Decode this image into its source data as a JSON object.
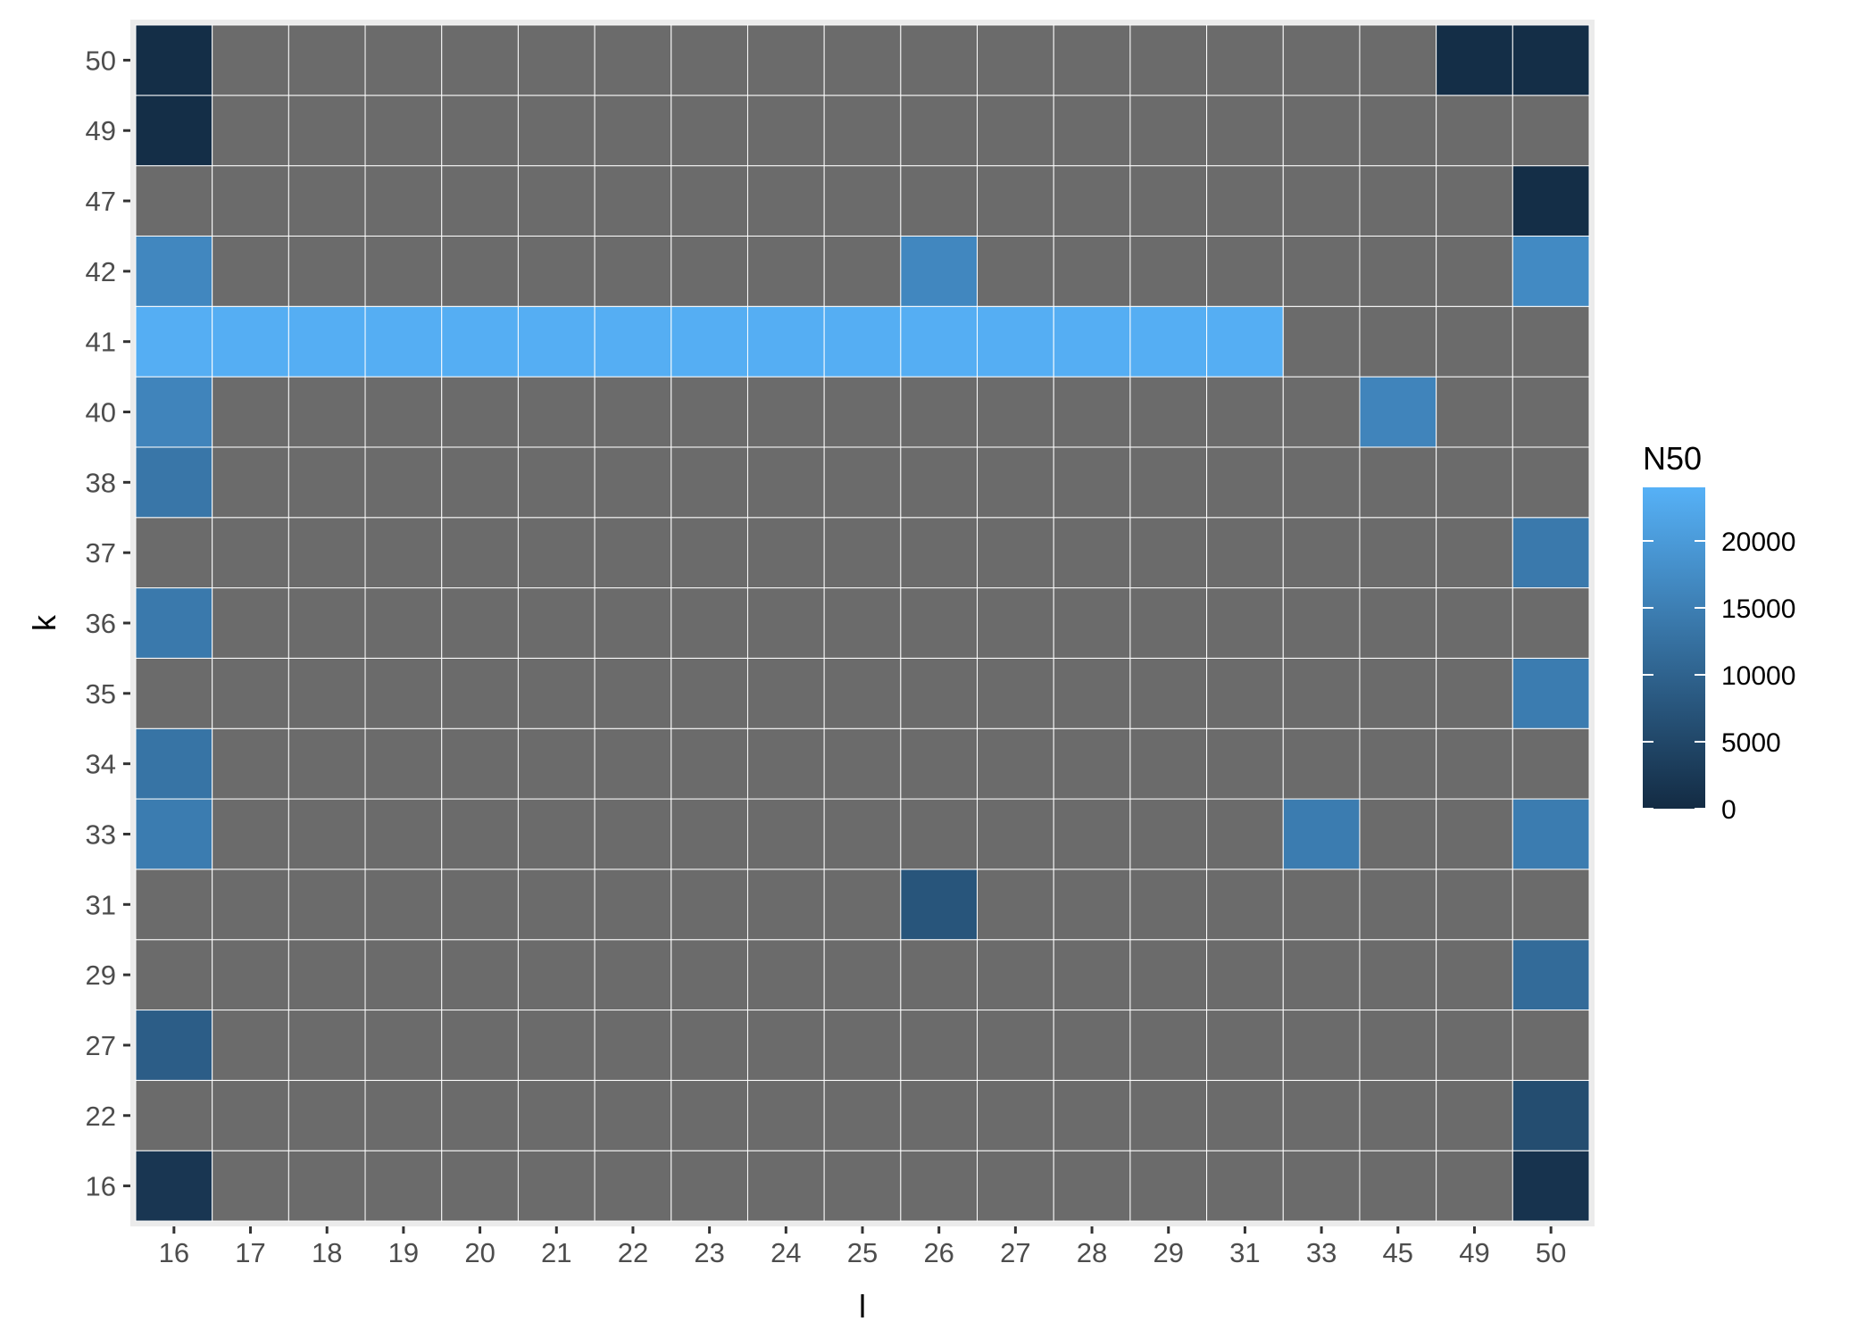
{
  "chart_data": {
    "type": "heatmap",
    "xlabel": "l",
    "ylabel": "k",
    "x_categories": [
      "16",
      "17",
      "18",
      "19",
      "20",
      "21",
      "22",
      "23",
      "24",
      "25",
      "26",
      "27",
      "28",
      "29",
      "31",
      "33",
      "45",
      "49",
      "50"
    ],
    "y_categories": [
      "16",
      "22",
      "27",
      "29",
      "31",
      "33",
      "34",
      "35",
      "36",
      "37",
      "38",
      "40",
      "41",
      "42",
      "47",
      "49",
      "50"
    ],
    "fill_variable": "N50",
    "fill_range": [
      0,
      24000
    ],
    "legend_ticks": [
      0,
      5000,
      10000,
      15000,
      20000
    ],
    "legend_tick_labels": [
      "0",
      "5000",
      "10000",
      "15000",
      "20000"
    ],
    "na_color": "#6b6b6b",
    "color_low": "#132b43",
    "color_high": "#56b1f7",
    "legend_position": "right",
    "grid": true,
    "cells": [
      {
        "l": "16",
        "k": "50",
        "value": 500
      },
      {
        "l": "49",
        "k": "50",
        "value": 500
      },
      {
        "l": "50",
        "k": "50",
        "value": 500
      },
      {
        "l": "16",
        "k": "49",
        "value": 500
      },
      {
        "l": "50",
        "k": "47",
        "value": 500
      },
      {
        "l": "16",
        "k": "42",
        "value": 16500
      },
      {
        "l": "26",
        "k": "42",
        "value": 16500
      },
      {
        "l": "50",
        "k": "42",
        "value": 17000
      },
      {
        "l": "16",
        "k": "41",
        "value": 23500
      },
      {
        "l": "17",
        "k": "41",
        "value": 23500
      },
      {
        "l": "18",
        "k": "41",
        "value": 23500
      },
      {
        "l": "19",
        "k": "41",
        "value": 23500
      },
      {
        "l": "20",
        "k": "41",
        "value": 23500
      },
      {
        "l": "21",
        "k": "41",
        "value": 23500
      },
      {
        "l": "22",
        "k": "41",
        "value": 23500
      },
      {
        "l": "23",
        "k": "41",
        "value": 23500
      },
      {
        "l": "24",
        "k": "41",
        "value": 23500
      },
      {
        "l": "25",
        "k": "41",
        "value": 23500
      },
      {
        "l": "26",
        "k": "41",
        "value": 23500
      },
      {
        "l": "27",
        "k": "41",
        "value": 23500
      },
      {
        "l": "28",
        "k": "41",
        "value": 23500
      },
      {
        "l": "29",
        "k": "41",
        "value": 23500
      },
      {
        "l": "31",
        "k": "41",
        "value": 23500
      },
      {
        "l": "16",
        "k": "40",
        "value": 16000
      },
      {
        "l": "45",
        "k": "40",
        "value": 16000
      },
      {
        "l": "16",
        "k": "38",
        "value": 13500
      },
      {
        "l": "50",
        "k": "37",
        "value": 14000
      },
      {
        "l": "16",
        "k": "36",
        "value": 14000
      },
      {
        "l": "50",
        "k": "35",
        "value": 14500
      },
      {
        "l": "16",
        "k": "34",
        "value": 13000
      },
      {
        "l": "16",
        "k": "33",
        "value": 14500
      },
      {
        "l": "33",
        "k": "33",
        "value": 14500
      },
      {
        "l": "50",
        "k": "33",
        "value": 14500
      },
      {
        "l": "26",
        "k": "31",
        "value": 7500
      },
      {
        "l": "50",
        "k": "29",
        "value": 11500
      },
      {
        "l": "16",
        "k": "27",
        "value": 9000
      },
      {
        "l": "50",
        "k": "22",
        "value": 6000
      },
      {
        "l": "16",
        "k": "16",
        "value": 2000
      },
      {
        "l": "50",
        "k": "16",
        "value": 1500
      }
    ]
  }
}
